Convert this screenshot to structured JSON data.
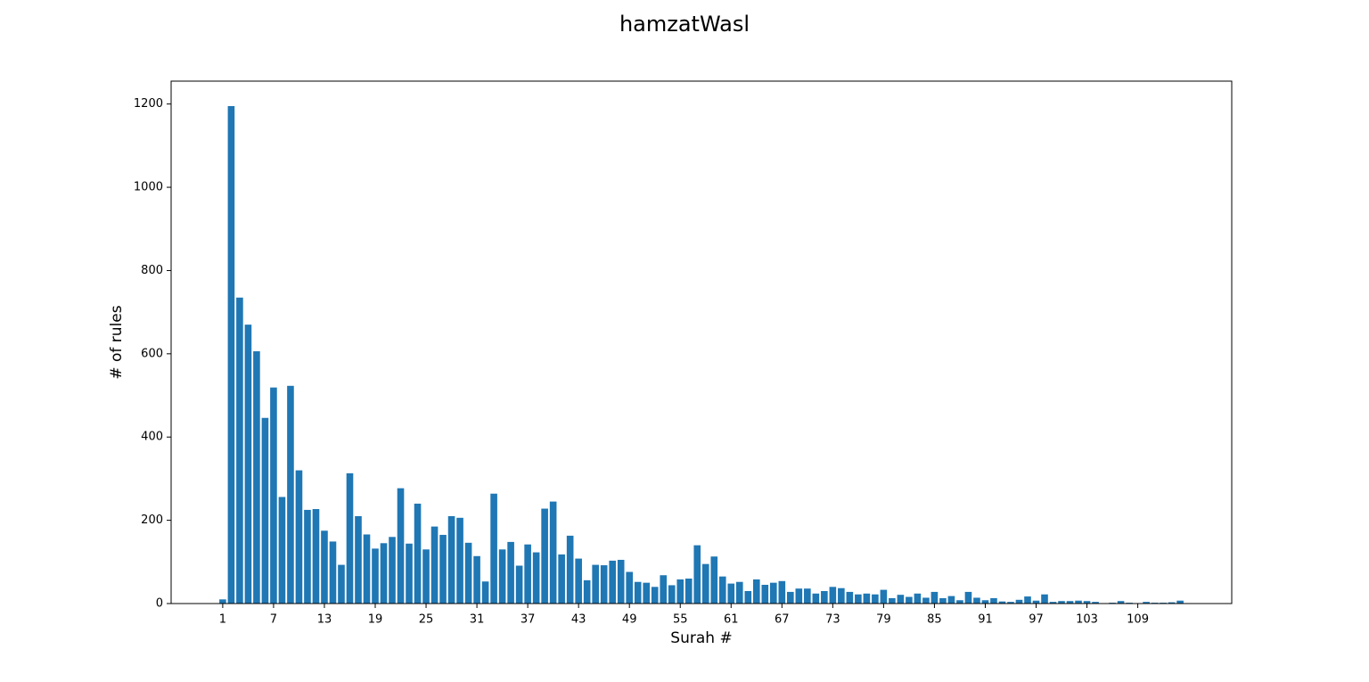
{
  "chart_data": {
    "type": "bar",
    "title": "hamzatWasl",
    "xlabel": "Surah #",
    "ylabel": "# of rules",
    "color": "#1f77b4",
    "x": [
      1,
      2,
      3,
      4,
      5,
      6,
      7,
      8,
      9,
      10,
      11,
      12,
      13,
      14,
      15,
      16,
      17,
      18,
      19,
      20,
      21,
      22,
      23,
      24,
      25,
      26,
      27,
      28,
      29,
      30,
      31,
      32,
      33,
      34,
      35,
      36,
      37,
      38,
      39,
      40,
      41,
      42,
      43,
      44,
      45,
      46,
      47,
      48,
      49,
      50,
      51,
      52,
      53,
      54,
      55,
      56,
      57,
      58,
      59,
      60,
      61,
      62,
      63,
      64,
      65,
      66,
      67,
      68,
      69,
      70,
      71,
      72,
      73,
      74,
      75,
      76,
      77,
      78,
      79,
      80,
      81,
      82,
      83,
      84,
      85,
      86,
      87,
      88,
      89,
      90,
      91,
      92,
      93,
      94,
      95,
      96,
      97,
      98,
      99,
      100,
      101,
      102,
      103,
      104,
      105,
      106,
      107,
      108,
      109,
      110,
      111,
      112,
      113,
      114
    ],
    "values": [
      10,
      1195,
      735,
      670,
      606,
      446,
      519,
      256,
      523,
      320,
      225,
      227,
      175,
      149,
      93,
      313,
      210,
      166,
      132,
      145,
      160,
      277,
      144,
      240,
      130,
      185,
      165,
      210,
      206,
      146,
      114,
      53,
      264,
      130,
      148,
      91,
      142,
      123,
      228,
      245,
      118,
      163,
      108,
      56,
      93,
      92,
      103,
      105,
      76,
      52,
      50,
      40,
      68,
      44,
      58,
      60,
      140,
      95,
      113,
      65,
      48,
      52,
      30,
      58,
      45,
      50,
      54,
      28,
      36,
      36,
      24,
      30,
      40,
      37,
      28,
      22,
      24,
      22,
      33,
      13,
      21,
      16,
      24,
      14,
      28,
      13,
      18,
      8,
      28,
      14,
      8,
      13,
      5,
      4,
      9,
      17,
      7,
      22,
      4,
      6,
      6,
      7,
      6,
      4,
      0,
      2,
      6,
      2,
      0,
      4,
      2,
      2,
      3,
      7
    ],
    "xlim": [
      -5.09,
      120.09
    ],
    "xticks": [
      1,
      7,
      13,
      19,
      25,
      31,
      37,
      43,
      49,
      55,
      61,
      67,
      73,
      79,
      85,
      91,
      97,
      103,
      109
    ],
    "ylim": [
      0,
      1255
    ],
    "yticks": [
      0,
      200,
      400,
      600,
      800,
      1000,
      1200
    ]
  }
}
